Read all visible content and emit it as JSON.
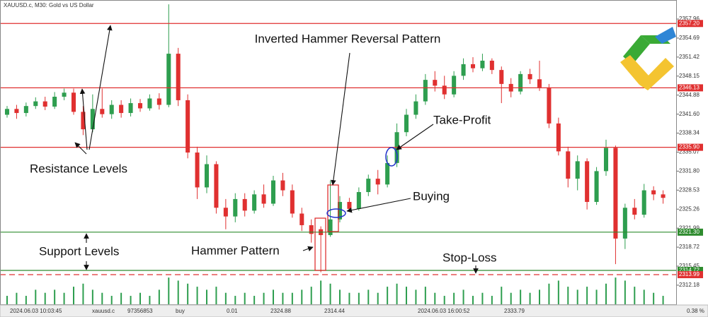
{
  "chart_data": {
    "type": "candlestick",
    "title": "XAUUSD.c, M30:  Gold vs US Dollar",
    "open": [
      2341.5,
      2342.5,
      2341.8,
      2343,
      2343.8,
      2342.9,
      2344.6,
      2345.3,
      2342,
      2339,
      2342.5,
      2341.6,
      2343.2,
      2341.8,
      2343.5,
      2342.6,
      2344.3,
      2343.2,
      2352,
      2344,
      2335,
      2329,
      2333,
      2325.5,
      2324,
      2327,
      2325,
      2327.8,
      2326.2,
      2330.2,
      2328.5,
      2324.5,
      2322.5,
      2321.8,
      2320.8,
      2323.5,
      2326.5,
      2325.3,
      2328.2,
      2330.5,
      2329.5,
      2333.2,
      2338.5,
      2341.5,
      2343.8,
      2347.5,
      2346.5,
      2345,
      2348.2,
      2350.2,
      2349.5,
      2350.8,
      2349.2,
      2346.8,
      2345.5,
      2348.5,
      2347.6,
      2346.2,
      2340,
      2335.2,
      2330.5,
      2333.5,
      2326.5,
      2331.8,
      2335.8,
      2320.2,
      2325.5,
      2324.3,
      2328.5,
      2327.8
    ],
    "high": [
      2343,
      2343.2,
      2343.6,
      2344.5,
      2344.6,
      2345.4,
      2346,
      2346,
      2343,
      2345,
      2346,
      2344,
      2344,
      2344.3,
      2344.2,
      2345,
      2345.2,
      2360.5,
      2353,
      2345,
      2336,
      2334.5,
      2333.5,
      2327,
      2328,
      2328,
      2328.5,
      2329.5,
      2331,
      2331.5,
      2329.5,
      2325.5,
      2323.5,
      2322.3,
      2330.2,
      2327.5,
      2327.2,
      2329,
      2331.2,
      2332,
      2334.5,
      2340,
      2342.5,
      2345,
      2348.5,
      2349,
      2348.2,
      2349,
      2351.2,
      2351.4,
      2352,
      2351.2,
      2349.8,
      2347.8,
      2349,
      2349.4,
      2350.8,
      2346.8,
      2341,
      2336,
      2334.5,
      2334,
      2332.5,
      2337.2,
      2336.2,
      2326.2,
      2327,
      2329.6,
      2329.2,
      2328.5
    ],
    "low": [
      2341,
      2340.8,
      2341.2,
      2342.5,
      2342.3,
      2342.5,
      2344,
      2341.5,
      2338,
      2338.5,
      2341,
      2340.8,
      2341,
      2341.2,
      2342,
      2342.2,
      2342.4,
      2342.8,
      2343,
      2334,
      2327,
      2328,
      2324.5,
      2321.8,
      2323,
      2324,
      2324.5,
      2325.5,
      2325.8,
      2327.5,
      2323.8,
      2321.5,
      2319.5,
      2314.4,
      2320.5,
      2323,
      2324.8,
      2325,
      2327.5,
      2327.8,
      2329,
      2332.5,
      2337.8,
      2340.8,
      2343.2,
      2345.5,
      2344.2,
      2344.5,
      2347.5,
      2348.8,
      2349,
      2348.5,
      2343.5,
      2344.5,
      2345,
      2346.8,
      2345.6,
      2339.2,
      2334.5,
      2329,
      2328.5,
      2325.2,
      2326,
      2331,
      2315.8,
      2318.4,
      2323.5,
      2323.8,
      2326.8,
      2326.2
    ],
    "close": [
      2342.5,
      2341.8,
      2343,
      2343.8,
      2342.9,
      2344.6,
      2345.3,
      2342,
      2339,
      2342.5,
      2341.6,
      2343.2,
      2341.8,
      2343.5,
      2342.6,
      2344.3,
      2343.2,
      2352,
      2344,
      2335,
      2329,
      2333,
      2325.5,
      2324,
      2327,
      2325,
      2327.8,
      2326.2,
      2330.2,
      2328.5,
      2324.5,
      2322.5,
      2321,
      2320.8,
      2323.5,
      2326.5,
      2325.3,
      2328.2,
      2330.5,
      2329.5,
      2333.2,
      2338.5,
      2341.5,
      2343.8,
      2347.5,
      2346.5,
      2345,
      2348.2,
      2350.2,
      2349.5,
      2350.8,
      2349.2,
      2346.8,
      2345.5,
      2348.5,
      2347.6,
      2346.2,
      2340,
      2335.2,
      2330.5,
      2333.5,
      2326.5,
      2331.8,
      2335.8,
      2320.2,
      2325.5,
      2324.3,
      2328.5,
      2327.8,
      2327.2
    ],
    "volume": {
      "axis": "y2",
      "color": "#2e9e4f",
      "values": [
        3,
        4,
        3,
        5,
        4,
        5,
        4,
        6,
        7,
        5,
        4,
        3,
        4,
        3,
        4,
        3,
        5,
        9,
        8,
        7,
        6,
        5,
        6,
        4,
        3,
        4,
        3,
        4,
        5,
        4,
        4,
        5,
        6,
        8,
        7,
        5,
        4,
        4,
        5,
        4,
        6,
        7,
        6,
        5,
        6,
        4,
        3,
        4,
        5,
        3,
        4,
        3,
        6,
        4,
        5,
        4,
        5,
        7,
        8,
        6,
        5,
        6,
        5,
        7,
        9,
        8,
        6,
        5,
        4,
        3
      ]
    },
    "up_color": "#2e9e4f",
    "down_color": "#e03030",
    "ylim": [
      2308.77,
      2361.24
    ],
    "y2lim": [
      0,
      100
    ],
    "yticks": [
      2357.96,
      2354.69,
      2351.42,
      2348.15,
      2344.88,
      {
        "value": 2341.6,
        "label": "2341.60"
      },
      2338.34,
      2335.07,
      {
        "value": 2331.8,
        "label": "2331.80"
      },
      2328.53,
      2325.26,
      2321.99,
      2318.72,
      2315.45,
      2312.18
    ],
    "levels": [
      {
        "value": 2357.2,
        "label": "2357.20",
        "color": "#e03030"
      },
      {
        "value": 2346.13,
        "label": "2346.13",
        "color": "#e03030"
      },
      {
        "value": 2335.9,
        "label": "2335.90",
        "color": "#e03030"
      },
      {
        "value": 2321.3,
        "label": "2321.30",
        "color": "#2e8b2e"
      },
      {
        "value": 2314.72,
        "label": "2314.72",
        "color": "#2e8b2e"
      },
      {
        "value": 2313.99,
        "label": "2313.99",
        "color": "#e03030"
      }
    ],
    "annotations": [
      "Inverted Hammer Reversal Pattern",
      "Take-Profit",
      "Resistance Levels",
      "Buying",
      "Support Levels",
      "Hammer Pattern",
      "Stop-Loss"
    ],
    "footer": [
      "2024.06.03 10:03:45",
      "xauusd.c",
      "97356853",
      "buy",
      "0.01",
      "2324.88",
      "2314.44",
      "2024.06.03 16:00:52",
      "2333.79",
      "0.38 %"
    ]
  }
}
